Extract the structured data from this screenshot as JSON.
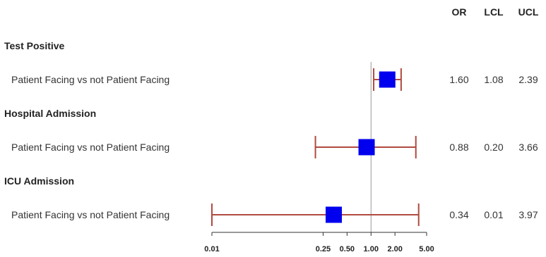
{
  "chart_data": {
    "type": "forest",
    "scale": "log",
    "columns": [
      "OR",
      "LCL",
      "UCL"
    ],
    "reference_line": 1.0,
    "xticks": [
      "0.01",
      "0.25",
      "0.50",
      "1.00",
      "2.00",
      "5.00"
    ],
    "xtick_values": [
      0.01,
      0.25,
      0.5,
      1.0,
      2.0,
      5.0
    ],
    "groups": [
      {
        "name": "Test Positive",
        "rows": [
          {
            "label": "Patient Facing vs not Patient Facing",
            "or": 1.6,
            "lcl": 1.08,
            "ucl": 2.39,
            "or_text": "1.60",
            "lcl_text": "1.08",
            "ucl_text": "2.39"
          }
        ]
      },
      {
        "name": "Hospital Admission",
        "rows": [
          {
            "label": "Patient Facing vs not Patient Facing",
            "or": 0.88,
            "lcl": 0.2,
            "ucl": 3.66,
            "or_text": "0.88",
            "lcl_text": "0.20",
            "ucl_text": "3.66"
          }
        ]
      },
      {
        "name": "ICU Admission",
        "rows": [
          {
            "label": "Patient Facing vs not Patient Facing",
            "or": 0.34,
            "lcl": 0.01,
            "ucl": 3.97,
            "or_text": "0.34",
            "lcl_text": "0.01",
            "ucl_text": "3.97"
          }
        ]
      }
    ],
    "colors": {
      "marker": "#0000ee",
      "ci": "#b04a3f",
      "ref_line": "#999999",
      "axis": "#333333"
    }
  }
}
